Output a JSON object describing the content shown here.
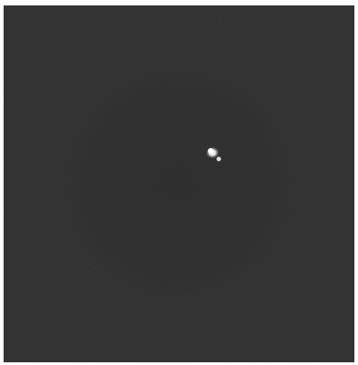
{
  "image": {
    "background_color": "#2f2f2f",
    "subject": "bright-point-source",
    "subject_color": "#ffffff"
  }
}
